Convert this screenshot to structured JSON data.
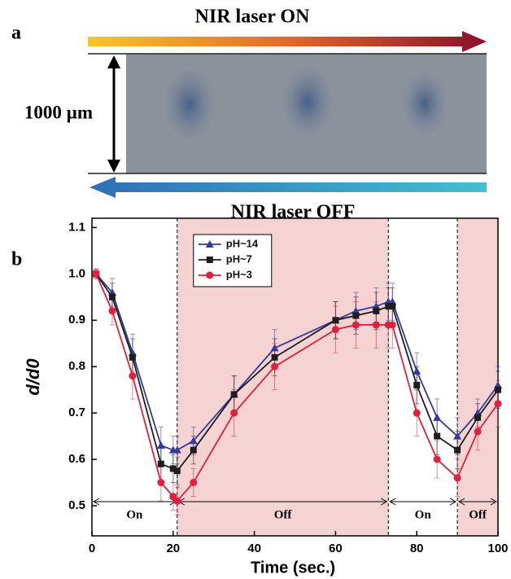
{
  "panel_a": {
    "label": "a",
    "top_arrow": "NIR laser ON",
    "scale": "1000 µm",
    "bottom_arrow": "NIR laser OFF"
  },
  "chart_data": {
    "type": "line",
    "panel_label": "b",
    "x_label": "Time (sec.)",
    "y_label": "d/d0",
    "xlim": [
      0,
      100
    ],
    "xticks": [
      0,
      20,
      40,
      60,
      80,
      100
    ],
    "ylim": [
      0.435,
      1.12
    ],
    "yticks": [
      0.5,
      0.6,
      0.7,
      0.8,
      0.9,
      {
        "value": 1,
        "label": "1.0"
      },
      1.1
    ],
    "grid": false,
    "legend": "upper left",
    "phases": [
      {
        "label": "On",
        "start": 0,
        "end": 21,
        "shaded": false
      },
      {
        "label": "Off",
        "start": 21,
        "end": 73,
        "shaded": true
      },
      {
        "label": "On",
        "start": 73,
        "end": 90,
        "shaded": false
      },
      {
        "label": "Off",
        "start": 90,
        "end": 100,
        "shaded": true
      }
    ],
    "x": [
      1,
      5,
      10,
      17,
      20,
      21,
      25,
      35,
      45,
      60,
      65,
      70,
      73,
      74,
      80,
      85,
      90,
      95,
      100
    ],
    "series": [
      {
        "name": "pH~14",
        "color": "#363a9a",
        "marker": "triangle",
        "values": [
          1.0,
          0.96,
          0.83,
          0.63,
          0.62,
          0.62,
          0.64,
          0.74,
          0.84,
          0.9,
          0.92,
          0.93,
          0.94,
          0.94,
          0.79,
          0.69,
          0.65,
          0.7,
          0.76
        ],
        "errors": [
          0.01,
          0.03,
          0.04,
          0.04,
          0.03,
          0.03,
          0.03,
          0.04,
          0.04,
          0.04,
          0.04,
          0.04,
          0.04,
          0.04,
          0.04,
          0.04,
          0.04,
          0.03,
          0.04
        ]
      },
      {
        "name": "pH~7",
        "color": "#1e1e1e",
        "marker": "square",
        "values": [
          1.0,
          0.95,
          0.82,
          0.59,
          0.58,
          0.575,
          0.62,
          0.74,
          0.82,
          0.9,
          0.91,
          0.92,
          0.93,
          0.93,
          0.76,
          0.65,
          0.62,
          0.69,
          0.75
        ],
        "errors": [
          0.01,
          0.03,
          0.04,
          0.04,
          0.03,
          0.03,
          0.03,
          0.04,
          0.04,
          0.04,
          0.04,
          0.04,
          0.04,
          0.04,
          0.04,
          0.04,
          0.04,
          0.03,
          0.04
        ]
      },
      {
        "name": "pH~3",
        "color": "#e0203c",
        "marker": "circle",
        "values": [
          1.0,
          0.92,
          0.78,
          0.55,
          0.52,
          0.51,
          0.55,
          0.7,
          0.8,
          0.88,
          0.89,
          0.89,
          0.89,
          0.89,
          0.7,
          0.6,
          0.56,
          0.66,
          0.72
        ],
        "errors": [
          0.01,
          0.03,
          0.05,
          0.04,
          0.03,
          0.03,
          0.03,
          0.05,
          0.05,
          0.05,
          0.05,
          0.05,
          0.05,
          0.05,
          0.05,
          0.04,
          0.04,
          0.04,
          0.05
        ]
      }
    ]
  }
}
